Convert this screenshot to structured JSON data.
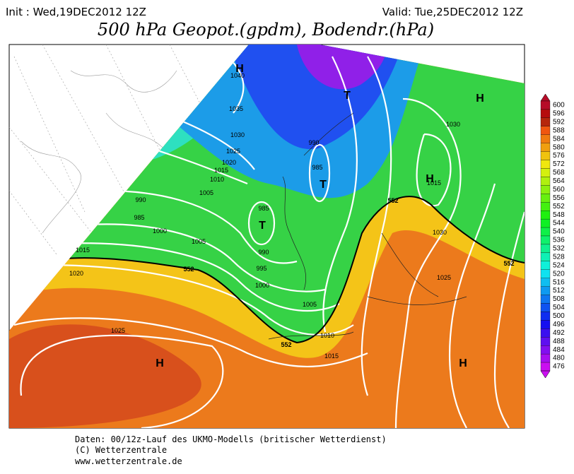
{
  "header": {
    "init": "Init : Wed,19DEC2012 12Z",
    "valid": "Valid: Tue,25DEC2012 12Z",
    "title": "500 hPa Geopot.(gpdm), Bodendr.(hPa)"
  },
  "map": {
    "centers": [
      "H",
      "T",
      "T",
      "T",
      "H",
      "H",
      "H",
      "H"
    ],
    "isobar_labels": [
      1040,
      1035,
      1030,
      1025,
      1020,
      1015,
      1010,
      1005,
      990,
      985,
      1000,
      1005,
      1015,
      1020,
      1025,
      990,
      985,
      985,
      990,
      995,
      1000,
      1005,
      1010,
      1015,
      1030,
      1015,
      1030,
      1025
    ],
    "contour_labels": [
      552,
      552,
      552,
      552
    ]
  },
  "colorbar": {
    "levels": [
      600,
      596,
      592,
      588,
      584,
      580,
      576,
      572,
      568,
      564,
      560,
      556,
      552,
      548,
      544,
      540,
      536,
      532,
      528,
      524,
      520,
      516,
      512,
      508,
      504,
      500,
      496,
      492,
      488,
      484,
      480,
      476
    ]
  },
  "footer": [
    "Daten: 00/12z-Lauf des UKMO-Modells (britischer Wetterdienst)",
    "(C) Wetterzentrale",
    "www.wetterzentrale.de"
  ]
}
